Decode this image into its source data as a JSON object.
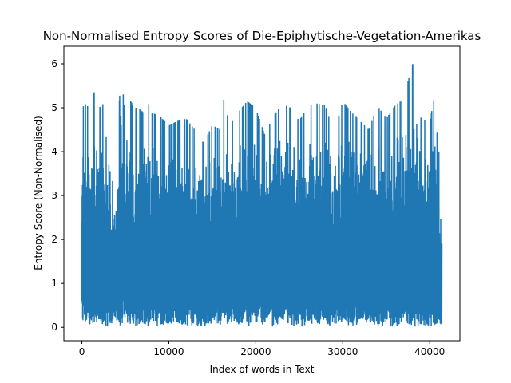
{
  "chart_data": {
    "type": "line",
    "title": "Non-Normalised Entropy Scores of Die-Epiphytische-Vegetation-Amerikas",
    "xlabel": "Index of words in Text",
    "ylabel": "Entropy Score (Non-Normalised)",
    "xlim": [
      -2070,
      43470
    ],
    "ylim": [
      -0.305,
      6.4
    ],
    "xticks": [
      0,
      10000,
      20000,
      30000,
      40000
    ],
    "yticks": [
      0,
      1,
      2,
      3,
      4,
      5,
      6
    ],
    "grid": false,
    "legend": "none",
    "series": [
      {
        "color": "#1f77b4",
        "x_range": [
          0,
          41400
        ],
        "y_min": 0.0,
        "y_max": 6.1,
        "envelope_x": [
          0,
          500,
          1000,
          1500,
          2000,
          2500,
          3000,
          3500,
          4000,
          4500,
          5000,
          5500,
          6000,
          6500,
          7000,
          7500,
          8000,
          9000,
          10000,
          11000,
          12000,
          13000,
          14000,
          15000,
          16000,
          16300,
          17000,
          18000,
          19000,
          20000,
          21000,
          22000,
          23000,
          24000,
          25000,
          26000,
          27000,
          28000,
          29000,
          30000,
          31000,
          32000,
          33000,
          34000,
          35000,
          36000,
          37000,
          37500,
          38200,
          39000,
          40000,
          40500,
          41000,
          41400
        ],
        "envelope_upper": [
          5.0,
          5.1,
          4.9,
          5.45,
          5.0,
          5.1,
          3.8,
          3.3,
          4.2,
          5.75,
          4.9,
          5.2,
          5.0,
          5.0,
          4.9,
          5.2,
          4.9,
          4.8,
          4.6,
          4.7,
          4.75,
          4.5,
          4.2,
          4.6,
          4.5,
          5.2,
          4.6,
          4.9,
          5.15,
          5.0,
          4.4,
          4.8,
          5.1,
          5.0,
          4.7,
          5.05,
          5.1,
          5.05,
          4.4,
          5.15,
          4.9,
          4.7,
          4.5,
          5.05,
          4.75,
          5.05,
          5.2,
          5.6,
          6.1,
          4.75,
          4.7,
          5.2,
          4.1,
          3.4
        ],
        "envelope_lower": [
          0.0,
          0.1,
          0.0,
          0.05,
          0.0,
          0.05,
          0.0,
          0.1,
          0.0,
          0.05,
          0.15,
          0.05,
          0.0,
          0.05,
          0.1,
          0.0,
          0.05,
          0.0,
          0.05,
          0.1,
          0.0,
          0.05,
          0.0,
          0.1,
          0.05,
          0.0,
          0.1,
          0.05,
          0.0,
          0.1,
          0.05,
          0.0,
          0.1,
          0.05,
          0.0,
          0.05,
          0.1,
          0.0,
          0.05,
          0.1,
          0.0,
          0.05,
          0.1,
          0.0,
          0.05,
          0.0,
          0.1,
          0.05,
          0.0,
          0.05,
          0.0,
          0.05,
          0.0,
          0.1
        ]
      }
    ]
  }
}
